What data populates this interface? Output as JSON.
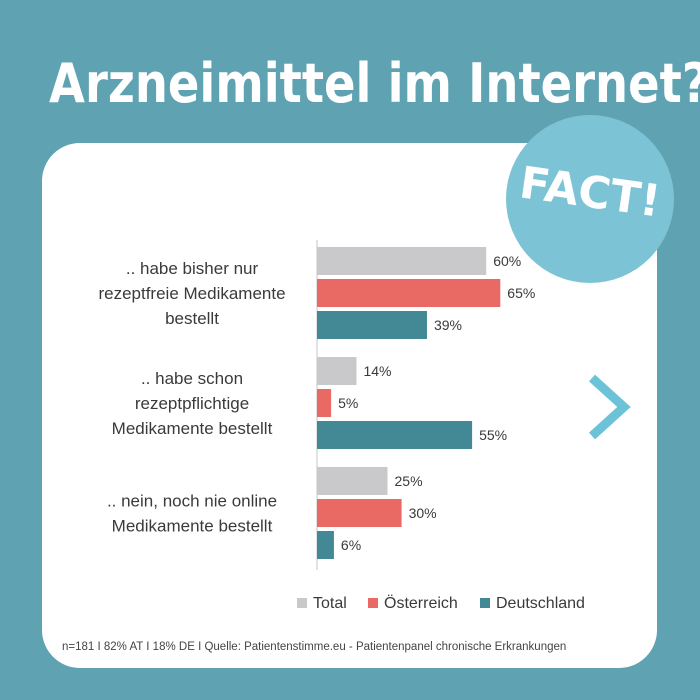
{
  "title": "Arzneimittel im Internet?",
  "badge": "FACT!",
  "footnote": "n=181 I 82% AT  I 18% DE I  Quelle: Patientenstimme.eu - Patientenpanel chronische Erkrankungen",
  "colors": {
    "background": "#5fa3b3",
    "badge": "#7cc3d6",
    "arrow": "#6cc3d8",
    "total": "#c9c9cb",
    "oesterreich": "#e96a64",
    "deutschland": "#428995"
  },
  "icons": {
    "next": "chevron-right-icon"
  },
  "chart_data": {
    "type": "bar",
    "orientation": "horizontal",
    "categories": [
      [
        ".. habe bisher nur",
        "rezeptfreie Medikamente",
        "bestellt"
      ],
      [
        ".. habe schon",
        "rezeptpflichtige",
        "Medikamente bestellt"
      ],
      [
        ".. nein, noch nie online",
        "Medikamente bestellt"
      ]
    ],
    "series": [
      {
        "name": "Total",
        "values": [
          60,
          14,
          25
        ],
        "color": "#c9c9cb"
      },
      {
        "name": "Österreich",
        "values": [
          65,
          5,
          30
        ],
        "color": "#e96a64"
      },
      {
        "name": "Deutschland",
        "values": [
          39,
          55,
          6
        ],
        "color": "#428995"
      }
    ],
    "value_suffix": "%",
    "xlim": [
      0,
      100
    ],
    "legend": "bottom-right"
  }
}
